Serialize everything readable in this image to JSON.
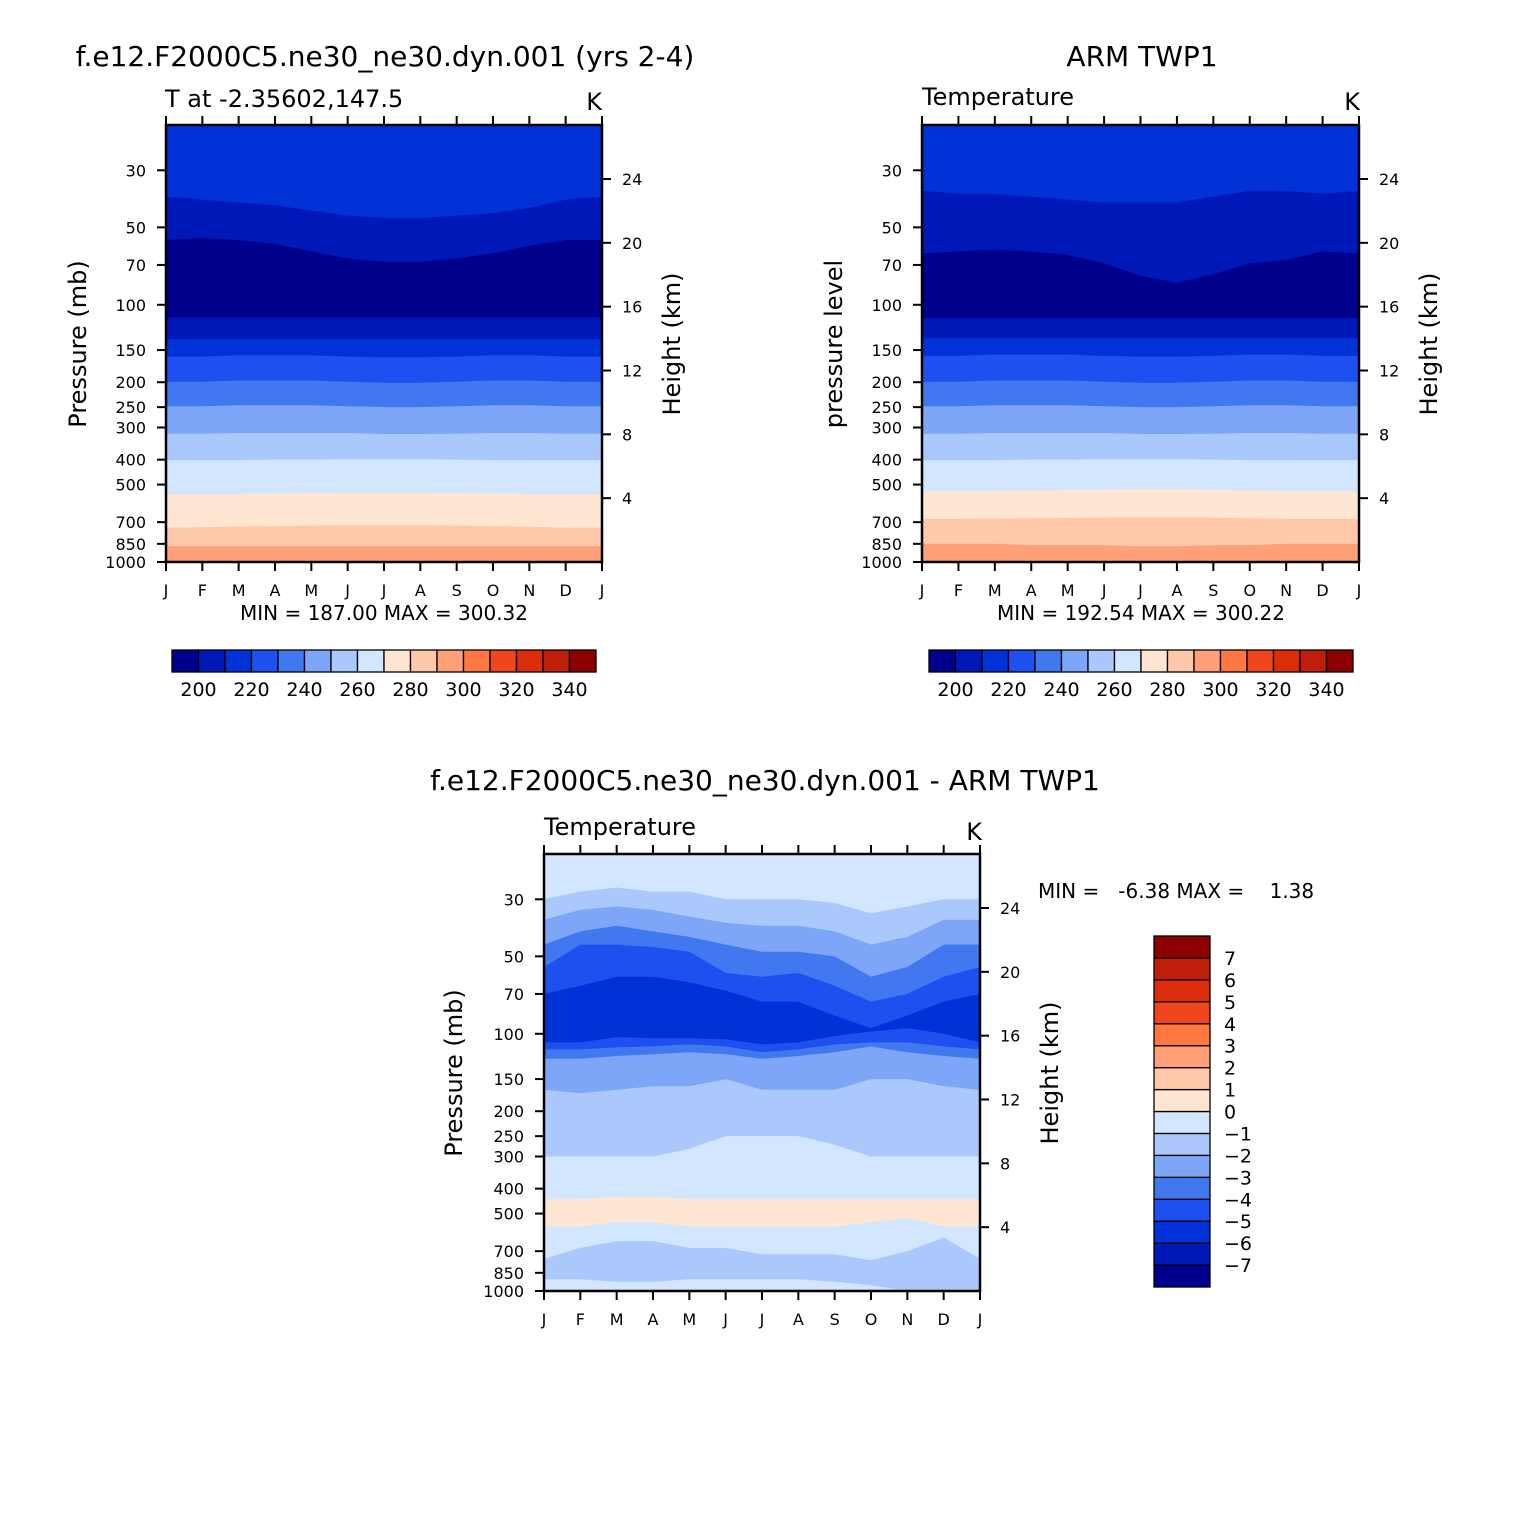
{
  "chart_data": [
    {
      "type": "heatmap",
      "title": "f.e12.F2000C5.ne30_ne30.dyn.001 (yrs 2-4)",
      "subtitle_left": "T at -2.35602,147.5",
      "subtitle_right": "K",
      "ylabel": "Pressure (mb)",
      "ylabel_right": "Height (km)",
      "x_ticks": [
        "J",
        "F",
        "M",
        "A",
        "M",
        "J",
        "J",
        "A",
        "S",
        "O",
        "N",
        "D",
        "J"
      ],
      "y_ticks": [
        "30",
        "50",
        "70",
        "100",
        "150",
        "200",
        "250",
        "300",
        "400",
        "500",
        "700",
        "850",
        "1000"
      ],
      "y_ticks_right": [
        "24",
        "20",
        "16",
        "12",
        "8",
        "4"
      ],
      "minmax_text": "MIN = 187.00 MAX = 300.32",
      "colorbar": {
        "orientation": "horizontal",
        "colors": [
          "#00008C",
          "#0018B8",
          "#0032D8",
          "#1E50F0",
          "#4178F0",
          "#7DA5F8",
          "#AAC8FC",
          "#D2E6FF",
          "#FFE6D2",
          "#FFC8AA",
          "#FFA078",
          "#FF7841",
          "#F0461E",
          "#DC2D0A",
          "#BE1E0A",
          "#8C0000"
        ],
        "labels": [
          "200",
          "220",
          "240",
          "260",
          "280",
          "300",
          "320",
          "340"
        ]
      },
      "layers": [
        {
          "level": 300,
          "color": "#FFA078",
          "boundary": [
            870,
            870,
            870,
            870,
            870,
            870,
            870,
            870,
            870,
            870,
            870,
            870,
            870
          ]
        },
        {
          "level": 290,
          "color": "#FFC8AA",
          "boundary": [
            735,
            732,
            728,
            725,
            722,
            720,
            720,
            720,
            722,
            725,
            730,
            735,
            735
          ]
        },
        {
          "level": 280,
          "color": "#FFE6D2",
          "boundary": [
            545,
            545,
            545,
            542,
            540,
            538,
            538,
            538,
            540,
            542,
            545,
            545,
            545
          ]
        },
        {
          "level": 270,
          "color": "#D2E6FF",
          "boundary": [
            402,
            402,
            402,
            400,
            400,
            398,
            398,
            398,
            400,
            402,
            402,
            402,
            402
          ]
        },
        {
          "level": 260,
          "color": "#AAC8FC",
          "boundary": [
            317,
            317,
            315,
            315,
            315,
            315,
            318,
            318,
            317,
            315,
            315,
            317,
            317
          ]
        },
        {
          "level": 250,
          "color": "#7DA5F8",
          "boundary": [
            248,
            248,
            246,
            246,
            246,
            248,
            250,
            250,
            248,
            246,
            246,
            248,
            248
          ]
        },
        {
          "level": 240,
          "color": "#4178F0",
          "boundary": [
            199,
            199,
            197,
            197,
            197,
            199,
            201,
            201,
            199,
            197,
            197,
            199,
            199
          ]
        },
        {
          "level": 230,
          "color": "#1E50F0",
          "boundary": [
            159,
            159,
            157,
            157,
            157,
            159,
            160,
            160,
            159,
            157,
            157,
            159,
            159
          ]
        },
        {
          "level": 220,
          "color": "#0032D8",
          "boundary": [
            136,
            136,
            136,
            136,
            136,
            136,
            136,
            136,
            136,
            136,
            136,
            136,
            136
          ]
        },
        {
          "level": 210,
          "color": "#0018B8",
          "boundary": [
            112,
            112,
            112,
            112,
            112,
            112,
            112,
            112,
            112,
            112,
            112,
            112,
            112
          ]
        },
        {
          "level": 200,
          "color": "#00008C",
          "boundary": [
            56,
            55,
            56,
            58,
            62,
            66,
            68,
            68,
            66,
            63,
            59,
            56,
            56
          ]
        },
        {
          "level": 210,
          "color": "#0018B8",
          "boundary": [
            38,
            39,
            40,
            41,
            43,
            45,
            46,
            46,
            45,
            44,
            42,
            39,
            38
          ]
        },
        {
          "level": 220,
          "color": "#0032D8",
          "boundary": [
            30,
            30,
            30,
            30,
            30,
            30,
            30,
            30,
            30,
            30,
            30,
            30,
            30
          ]
        }
      ]
    },
    {
      "type": "heatmap",
      "title": "ARM TWP1",
      "subtitle_left": "Temperature",
      "subtitle_right": "K",
      "ylabel": "pressure level",
      "ylabel_right": "Height (km)",
      "x_ticks": [
        "J",
        "F",
        "M",
        "A",
        "M",
        "J",
        "J",
        "A",
        "S",
        "O",
        "N",
        "D",
        "J"
      ],
      "y_ticks": [
        "30",
        "50",
        "70",
        "100",
        "150",
        "200",
        "250",
        "300",
        "400",
        "500",
        "700",
        "850",
        "1000"
      ],
      "y_ticks_right": [
        "24",
        "20",
        "16",
        "12",
        "8",
        "4"
      ],
      "minmax_text": "MIN = 192.54 MAX = 300.22",
      "colorbar": {
        "orientation": "horizontal",
        "colors": [
          "#00008C",
          "#0018B8",
          "#0032D8",
          "#1E50F0",
          "#4178F0",
          "#7DA5F8",
          "#AAC8FC",
          "#D2E6FF",
          "#FFE6D2",
          "#FFC8AA",
          "#FFA078",
          "#FF7841",
          "#F0461E",
          "#DC2D0A",
          "#BE1E0A",
          "#8C0000"
        ],
        "labels": [
          "200",
          "220",
          "240",
          "260",
          "280",
          "300",
          "320",
          "340"
        ]
      },
      "layers": [
        {
          "level": 300,
          "color": "#FFA078",
          "boundary": [
            850,
            850,
            850,
            860,
            860,
            860,
            870,
            870,
            860,
            860,
            850,
            850,
            850
          ]
        },
        {
          "level": 290,
          "color": "#FFC8AA",
          "boundary": [
            680,
            680,
            678,
            676,
            674,
            672,
            670,
            670,
            672,
            676,
            680,
            680,
            680
          ]
        },
        {
          "level": 280,
          "color": "#FFE6D2",
          "boundary": [
            530,
            530,
            528,
            526,
            524,
            522,
            520,
            520,
            522,
            526,
            528,
            530,
            530
          ]
        },
        {
          "level": 270,
          "color": "#D2E6FF",
          "boundary": [
            402,
            402,
            402,
            400,
            400,
            398,
            398,
            398,
            400,
            402,
            402,
            402,
            402
          ]
        },
        {
          "level": 260,
          "color": "#AAC8FC",
          "boundary": [
            317,
            317,
            315,
            315,
            315,
            315,
            318,
            318,
            317,
            315,
            315,
            317,
            317
          ]
        },
        {
          "level": 250,
          "color": "#7DA5F8",
          "boundary": [
            248,
            248,
            246,
            246,
            246,
            248,
            250,
            250,
            248,
            246,
            246,
            248,
            248
          ]
        },
        {
          "level": 240,
          "color": "#4178F0",
          "boundary": [
            199,
            199,
            197,
            197,
            197,
            199,
            201,
            201,
            199,
            197,
            197,
            199,
            199
          ]
        },
        {
          "level": 230,
          "color": "#1E50F0",
          "boundary": [
            158,
            158,
            156,
            156,
            156,
            158,
            159,
            159,
            158,
            156,
            156,
            158,
            158
          ]
        },
        {
          "level": 220,
          "color": "#0032D8",
          "boundary": [
            135,
            135,
            135,
            135,
            135,
            135,
            135,
            135,
            135,
            135,
            135,
            135,
            135
          ]
        },
        {
          "level": 210,
          "color": "#0018B8",
          "boundary": [
            113,
            113,
            113,
            113,
            113,
            113,
            113,
            113,
            113,
            113,
            113,
            113,
            113
          ]
        },
        {
          "level": 200,
          "color": "#00008C",
          "boundary": [
            63,
            62,
            61,
            62,
            64,
            69,
            77,
            82,
            76,
            69,
            67,
            62,
            63
          ]
        },
        {
          "level": 210,
          "color": "#0018B8",
          "boundary": [
            36,
            37,
            37,
            38,
            39,
            40,
            40,
            40,
            38,
            36,
            36,
            37,
            36
          ]
        },
        {
          "level": 220,
          "color": "#0032D8",
          "boundary": [
            30,
            30,
            30,
            30,
            30,
            30,
            30,
            30,
            30,
            30,
            30,
            30,
            30
          ]
        }
      ]
    },
    {
      "type": "heatmap",
      "title": "f.e12.F2000C5.ne30_ne30.dyn.001 - ARM TWP1",
      "subtitle_left": "Temperature",
      "subtitle_right": "K",
      "ylabel": "Pressure (mb)",
      "ylabel_right": "Height (km)",
      "x_ticks": [
        "J",
        "F",
        "M",
        "A",
        "M",
        "J",
        "J",
        "A",
        "S",
        "O",
        "N",
        "D",
        "J"
      ],
      "y_ticks": [
        "30",
        "50",
        "70",
        "100",
        "150",
        "200",
        "250",
        "300",
        "400",
        "500",
        "700",
        "850",
        "1000"
      ],
      "y_ticks_right": [
        "24",
        "20",
        "16",
        "12",
        "8",
        "4"
      ],
      "minmax_text": "MIN =   -6.38 MAX =    1.38",
      "colorbar": {
        "orientation": "vertical",
        "colors": [
          "#00008C",
          "#0018B8",
          "#0032D8",
          "#1E50F0",
          "#4178F0",
          "#7DA5F8",
          "#AAC8FC",
          "#D2E6FF",
          "#FFE6D2",
          "#FFC8AA",
          "#FFA078",
          "#FF7841",
          "#F0461E",
          "#DC2D0A",
          "#BE1E0A",
          "#8C0000"
        ],
        "labels": [
          "-7",
          "-6",
          "-5",
          "-4",
          "-3",
          "-2",
          "-1",
          "0",
          "1",
          "2",
          "3",
          "4",
          "5",
          "6",
          "7"
        ]
      },
      "layers": [
        {
          "level": 0.5,
          "color": "#FFE6D2",
          "boundary": [
            1000,
            1000,
            1000,
            1000,
            1000,
            1000,
            1000,
            1000,
            1000,
            1000,
            1000,
            1000,
            1000
          ]
        },
        {
          "level": -0.5,
          "color": "#D2E6FF",
          "boundary": [
            900,
            900,
            920,
            920,
            900,
            900,
            900,
            900,
            920,
            950,
            1000,
            1000,
            1000
          ]
        },
        {
          "level": -0.5,
          "color": "#AAC8FC",
          "boundary": [
            750,
            680,
            640,
            640,
            680,
            680,
            720,
            720,
            720,
            760,
            700,
            620,
            750
          ]
        },
        {
          "level": 0.5,
          "color": "#D2E6FF",
          "boundary": [
            560,
            560,
            540,
            540,
            560,
            560,
            560,
            560,
            560,
            540,
            520,
            560,
            560
          ]
        },
        {
          "level": 0.5,
          "color": "#FFE6D2",
          "boundary": [
            440,
            440,
            430,
            430,
            440,
            440,
            440,
            440,
            440,
            440,
            440,
            440,
            440
          ]
        },
        {
          "level": 0.5,
          "color": "#D2E6FF",
          "boundary": [
            300,
            300,
            300,
            300,
            280,
            250,
            250,
            250,
            270,
            300,
            300,
            300,
            300
          ]
        },
        {
          "level": -0.5,
          "color": "#AAC8FC",
          "boundary": [
            165,
            170,
            165,
            160,
            160,
            150,
            165,
            165,
            165,
            150,
            150,
            160,
            165
          ]
        },
        {
          "level": -1.5,
          "color": "#7DA5F8",
          "boundary": [
            125,
            125,
            122,
            120,
            118,
            120,
            125,
            122,
            118,
            112,
            118,
            122,
            125
          ]
        },
        {
          "level": -2.5,
          "color": "#4178F0",
          "boundary": [
            115,
            115,
            113,
            112,
            110,
            112,
            118,
            115,
            110,
            108,
            108,
            112,
            115
          ]
        },
        {
          "level": -3.5,
          "color": "#1E50F0",
          "boundary": [
            108,
            108,
            103,
            104,
            104,
            105,
            110,
            108,
            102,
            98,
            95,
            100,
            108
          ]
        },
        {
          "level": -4.5,
          "color": "#0032D8",
          "boundary": [
            70,
            65,
            60,
            60,
            63,
            68,
            75,
            75,
            85,
            95,
            85,
            75,
            70
          ]
        },
        {
          "level": -3.5,
          "color": "#1E50F0",
          "boundary": [
            55,
            45,
            45,
            46,
            48,
            58,
            60,
            58,
            65,
            75,
            70,
            60,
            55
          ]
        },
        {
          "level": -2.5,
          "color": "#4178F0",
          "boundary": [
            45,
            40,
            38,
            40,
            42,
            45,
            48,
            48,
            50,
            60,
            55,
            45,
            45
          ]
        },
        {
          "level": -1.5,
          "color": "#7DA5F8",
          "boundary": [
            36,
            33,
            32,
            33,
            35,
            37,
            38,
            38,
            40,
            45,
            42,
            36,
            36
          ]
        },
        {
          "level": -0.5,
          "color": "#AAC8FC",
          "boundary": [
            30,
            28,
            27,
            28,
            28,
            30,
            30,
            30,
            31,
            34,
            32,
            30,
            30
          ]
        },
        {
          "level": 0.5,
          "color": "#D2E6FF",
          "boundary": [
            26,
            26,
            25,
            25,
            25,
            26,
            26,
            26,
            26,
            27,
            26,
            26,
            26
          ]
        }
      ]
    }
  ]
}
